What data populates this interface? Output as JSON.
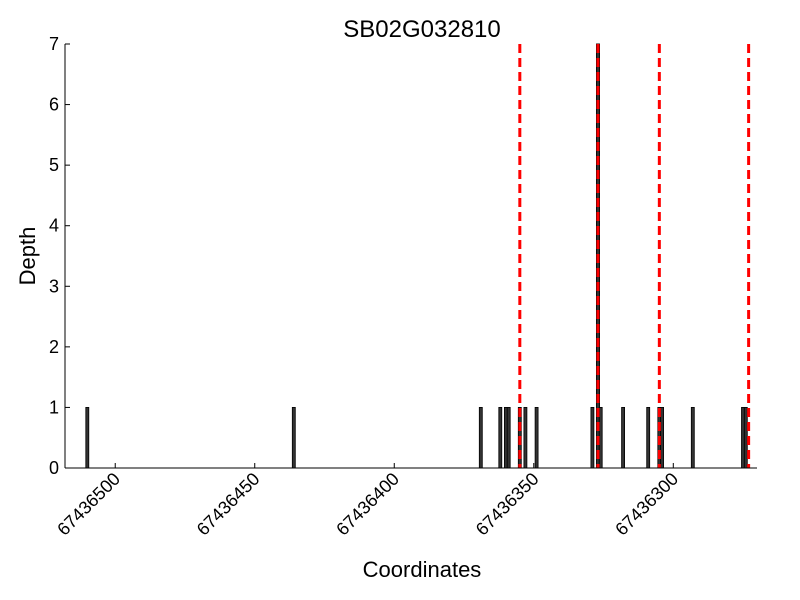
{
  "chart_data": {
    "type": "bar",
    "title": "SB02G032810",
    "xlabel": "Coordinates",
    "ylabel": "Depth",
    "xlim": [
      67436518,
      67436270
    ],
    "ylim": [
      0,
      7
    ],
    "x_inverted": true,
    "grid": false,
    "x_ticks": [
      67436500,
      67436450,
      67436400,
      67436350,
      67436300
    ],
    "x_tick_labels": [
      "67436500",
      "67436450",
      "67436400",
      "67436350",
      "67436300"
    ],
    "y_ticks": [
      0,
      1,
      2,
      3,
      4,
      5,
      6,
      7
    ],
    "y_tick_labels": [
      "0",
      "1",
      "2",
      "3",
      "4",
      "5",
      "6",
      "7"
    ],
    "bar_color": "#333333",
    "series": [
      {
        "x": [
          67436510,
          67436436,
          67436369,
          67436362,
          67436360,
          67436359,
          67436355,
          67436353,
          67436349,
          67436329,
          67436327,
          67436327,
          67436326,
          67436318,
          67436309,
          67436305,
          67436304,
          67436293,
          67436275,
          67436274
        ],
        "values": [
          1,
          1,
          1,
          1,
          1,
          1,
          1,
          1,
          1,
          1,
          7,
          7,
          1,
          1,
          1,
          1,
          1,
          1,
          1,
          1
        ]
      }
    ],
    "vlines": {
      "color": "#ff0000",
      "style": "dashed",
      "x": [
        67436355,
        67436327,
        67436305,
        67436273
      ]
    }
  }
}
